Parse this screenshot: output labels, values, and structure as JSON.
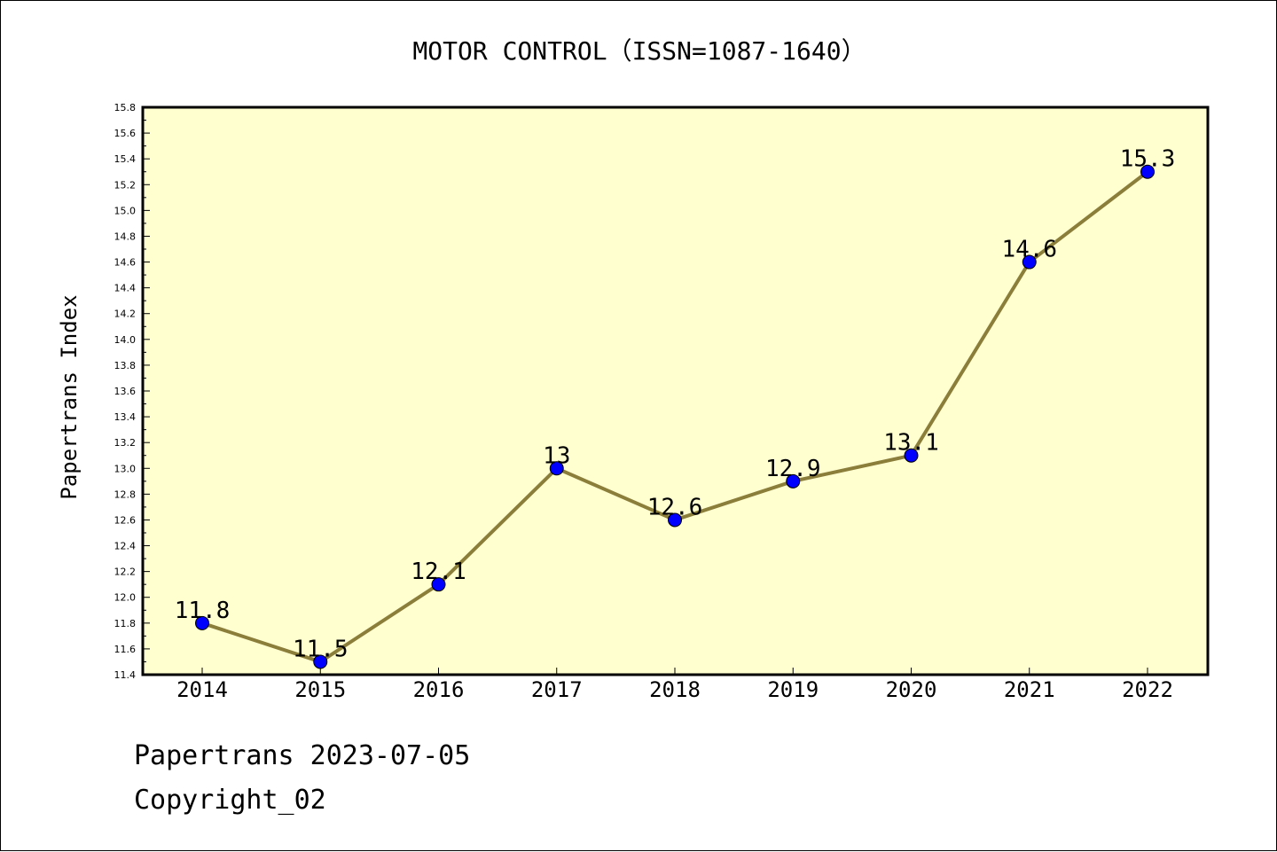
{
  "chart_data": {
    "type": "line",
    "title": "MOTOR CONTROL（ISSN=1087-1640）",
    "xlabel": "",
    "ylabel": "Papertrans Index",
    "categories": [
      "2014",
      "2015",
      "2016",
      "2017",
      "2018",
      "2019",
      "2020",
      "2021",
      "2022"
    ],
    "series": [
      {
        "values": [
          11.8,
          11.5,
          12.1,
          13.0,
          12.6,
          12.9,
          13.1,
          14.6,
          15.3
        ],
        "labels": [
          "11.8",
          "11.5",
          "12.1",
          "13",
          "12.6",
          "12.9",
          "13.1",
          "14.6",
          "15.3"
        ]
      }
    ],
    "ylim": [
      11.4,
      15.8
    ],
    "yticks": [
      "11.4",
      "11.6",
      "11.8",
      "12.0",
      "12.2",
      "12.4",
      "12.6",
      "12.8",
      "13.0",
      "13.2",
      "13.4",
      "13.6",
      "13.8",
      "14.0",
      "14.2",
      "14.4",
      "14.6",
      "14.8",
      "15.0",
      "15.2",
      "15.4",
      "15.6",
      "15.8"
    ],
    "grid": false,
    "colors": {
      "plot_background": "#ffffd0",
      "line": "#8b7d3a",
      "marker": "#0000ff"
    }
  },
  "footer": {
    "line1": "Papertrans 2023-07-05",
    "line2": "Copyright_02"
  }
}
